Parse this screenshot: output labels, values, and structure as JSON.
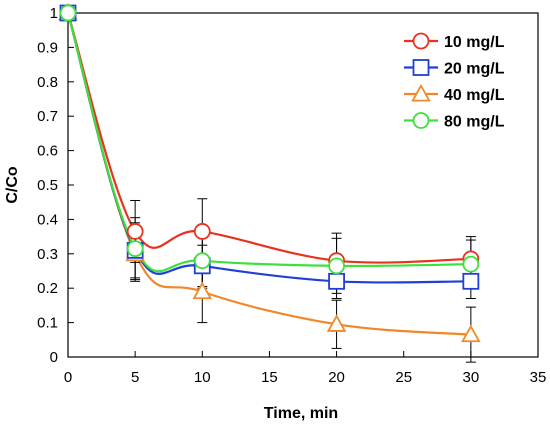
{
  "chart_data": {
    "type": "line",
    "title": "",
    "xlabel": "Time, min",
    "ylabel": "C/Co",
    "xlim": [
      0,
      35
    ],
    "ylim": [
      0,
      1
    ],
    "xticks": [
      0,
      5,
      10,
      15,
      20,
      25,
      30,
      35
    ],
    "yticks": [
      0,
      0.1,
      0.2,
      0.3,
      0.4,
      0.5,
      0.6,
      0.7,
      0.8,
      0.9,
      1
    ],
    "xtick_labels": [
      "0",
      "5",
      "10",
      "15",
      "20",
      "25",
      "30",
      "35"
    ],
    "ytick_labels": [
      "0",
      "0.1",
      "0.2",
      "0.3",
      "0.4",
      "0.5",
      "0.6",
      "0.7",
      "0.8",
      "0.9",
      "1"
    ],
    "grid": false,
    "legend_position": "top-right",
    "x": [
      0,
      5,
      10,
      20,
      30
    ],
    "series": [
      {
        "name": "10 mg/L",
        "color": "#e8321e",
        "marker": "circle",
        "values": [
          1.0,
          0.365,
          0.365,
          0.28,
          0.285
        ],
        "error": [
          0,
          0.09,
          0.095,
          0.08,
          0.065
        ]
      },
      {
        "name": "20 mg/L",
        "color": "#1f3fd6",
        "marker": "square",
        "values": [
          1.0,
          0.31,
          0.265,
          0.22,
          0.22
        ],
        "error": [
          0,
          0.08,
          0.06,
          0.05,
          0.05
        ]
      },
      {
        "name": "40 mg/L",
        "color": "#f0882a",
        "marker": "triangle",
        "values": [
          1.0,
          0.3,
          0.19,
          0.095,
          0.065
        ],
        "error": [
          0,
          0.08,
          0.09,
          0.07,
          0.08
        ]
      },
      {
        "name": "80 mg/L",
        "color": "#3de03d",
        "marker": "circle",
        "values": [
          1.0,
          0.315,
          0.28,
          0.265,
          0.27
        ],
        "error": [
          0,
          0.09,
          0.08,
          0.08,
          0.07
        ]
      }
    ]
  }
}
